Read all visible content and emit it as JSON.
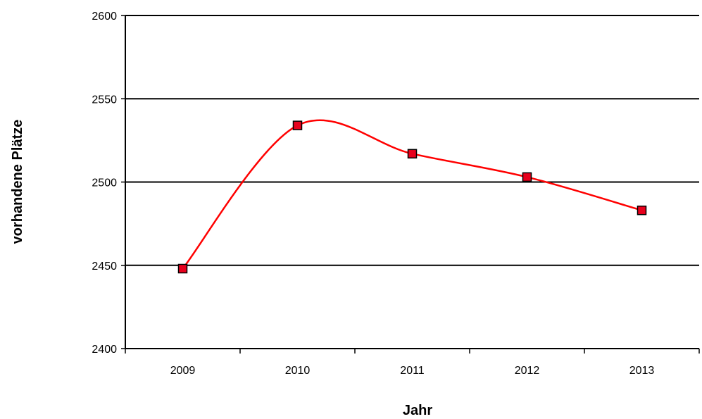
{
  "chart_data": {
    "type": "line",
    "categories": [
      "2009",
      "2010",
      "2011",
      "2012",
      "2013"
    ],
    "series": [
      {
        "values": [
          2448,
          2534,
          2517,
          2503,
          2483
        ],
        "color": "#ff0000",
        "marker_color": "#e8001c",
        "smooth": true
      }
    ],
    "xlabel": "Jahr",
    "ylabel": "vorhandene Plätze",
    "ylim": [
      2400,
      2600
    ],
    "yticks": [
      2400,
      2450,
      2500,
      2550,
      2600
    ],
    "grid": true,
    "legend": "none"
  }
}
